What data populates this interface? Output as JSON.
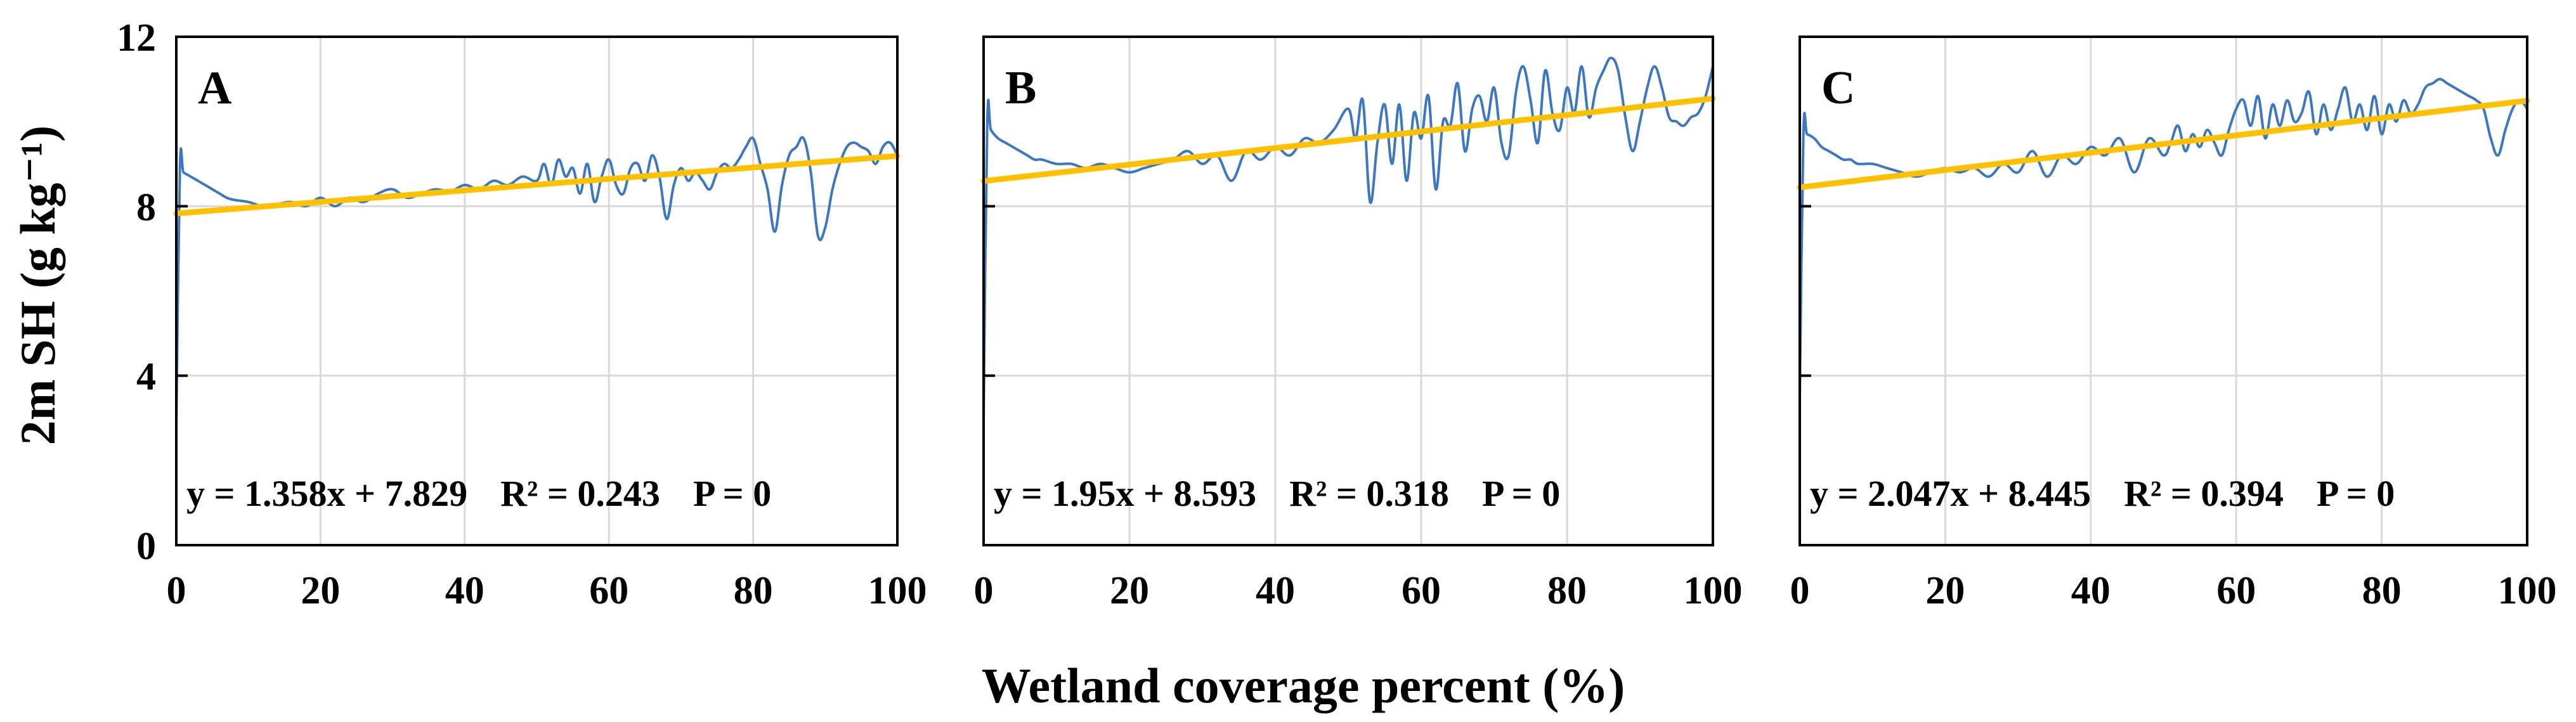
{
  "figure": {
    "ylabel": "2m SH (g kg⁻¹)",
    "xlabel": "Wetland coverage percent (%)"
  },
  "chart_data": [
    {
      "type": "line",
      "panel": "A",
      "equation": "y = 1.358x + 7.829",
      "r2": "R² = 0.243",
      "p": "P = 0",
      "xlim": [
        0,
        100
      ],
      "ylim": [
        0,
        12
      ],
      "xticks": [
        "0",
        "20",
        "40",
        "60",
        "80",
        "100"
      ],
      "yticks": [
        "0",
        "4",
        "8",
        "12"
      ],
      "grid": true,
      "series": [
        {
          "color": "#3b78c0",
          "x": [
            0,
            0.5,
            1,
            2,
            3,
            4,
            5,
            6,
            7,
            8,
            10,
            12,
            14,
            16,
            18,
            20,
            22,
            24,
            26,
            28,
            30,
            32,
            34,
            36,
            38,
            40,
            42,
            44,
            46,
            48,
            50,
            51,
            52,
            53,
            54,
            55,
            56,
            57,
            58,
            59,
            60,
            61,
            62,
            63,
            64,
            65,
            66,
            67,
            68,
            69,
            70,
            71,
            72,
            73,
            74,
            75,
            76,
            77,
            78,
            79,
            80,
            81,
            82,
            83,
            84,
            85,
            86,
            87,
            88,
            89,
            90,
            91,
            92,
            93,
            94,
            95,
            96,
            97,
            98,
            99,
            100
          ],
          "y": [
            2.8,
            8.9,
            8.8,
            8.7,
            8.6,
            8.5,
            8.4,
            8.3,
            8.2,
            8.15,
            8.1,
            8.0,
            8.05,
            8.1,
            8.0,
            8.2,
            8.0,
            8.2,
            8.1,
            8.3,
            8.4,
            8.2,
            8.3,
            8.4,
            8.35,
            8.5,
            8.4,
            8.6,
            8.5,
            8.7,
            8.6,
            9.0,
            8.5,
            9.1,
            8.7,
            8.9,
            8.3,
            9.0,
            8.1,
            8.7,
            9.1,
            8.5,
            8.3,
            8.9,
            9.0,
            8.6,
            9.2,
            8.7,
            7.7,
            8.5,
            8.9,
            8.6,
            8.8,
            8.6,
            8.4,
            8.8,
            9.0,
            8.9,
            9.1,
            9.4,
            9.6,
            9.0,
            8.4,
            7.4,
            8.5,
            9.2,
            9.4,
            9.6,
            8.8,
            7.3,
            7.5,
            8.4,
            9.0,
            9.4,
            9.5,
            9.4,
            9.3,
            9.0,
            9.4,
            9.5,
            9.2
          ]
        },
        {
          "color": "#ffc000",
          "x": [
            0,
            100
          ],
          "y": [
            7.829,
            9.187
          ]
        }
      ]
    },
    {
      "type": "line",
      "panel": "B",
      "equation": "y = 1.95x + 8.593",
      "r2": "R² = 0.318",
      "p": "P = 0",
      "xlim": [
        0,
        100
      ],
      "ylim": [
        0,
        12
      ],
      "xticks": [
        "0",
        "20",
        "40",
        "60",
        "80",
        "100"
      ],
      "yticks": [
        "0",
        "4",
        "8",
        "12"
      ],
      "grid": true,
      "series": [
        {
          "color": "#3b78c0",
          "x": [
            0,
            0.5,
            1,
            2,
            3,
            4,
            5,
            6,
            7,
            8,
            10,
            12,
            14,
            16,
            18,
            20,
            22,
            24,
            26,
            28,
            30,
            32,
            34,
            36,
            38,
            40,
            42,
            44,
            46,
            48,
            50,
            51,
            52,
            53,
            54,
            55,
            56,
            57,
            58,
            59,
            60,
            61,
            62,
            63,
            64,
            65,
            66,
            67,
            68,
            69,
            70,
            71,
            72,
            73,
            74,
            75,
            76,
            77,
            78,
            79,
            80,
            81,
            82,
            83,
            84,
            85,
            86,
            87,
            88,
            89,
            90,
            91,
            92,
            93,
            94,
            95,
            96,
            97,
            98,
            99,
            100
          ],
          "y": [
            3.0,
            10.0,
            9.8,
            9.6,
            9.5,
            9.4,
            9.3,
            9.2,
            9.1,
            9.1,
            9.0,
            9.0,
            8.9,
            9.0,
            8.9,
            8.8,
            8.9,
            9.0,
            9.1,
            9.3,
            9.0,
            9.2,
            8.6,
            9.3,
            9.1,
            9.4,
            9.2,
            9.6,
            9.5,
            9.8,
            10.3,
            9.6,
            10.5,
            8.1,
            9.5,
            10.4,
            9.0,
            10.4,
            8.6,
            10.2,
            9.6,
            10.6,
            8.4,
            10.0,
            9.9,
            10.9,
            9.3,
            10.3,
            10.6,
            10.0,
            10.8,
            9.5,
            9.2,
            10.7,
            11.3,
            10.5,
            9.5,
            11.2,
            10.2,
            9.8,
            10.8,
            10.2,
            11.3,
            10.1,
            10.8,
            11.2,
            11.5,
            11.2,
            10.1,
            9.3,
            10.0,
            10.8,
            11.3,
            10.8,
            10.1,
            10.0,
            9.9,
            10.1,
            10.2,
            10.6,
            11.3
          ]
        },
        {
          "color": "#ffc000",
          "x": [
            0,
            100
          ],
          "y": [
            8.593,
            10.543
          ]
        }
      ]
    },
    {
      "type": "line",
      "panel": "C",
      "equation": "y = 2.047x + 8.445",
      "r2": "R² = 0.394",
      "p": "P = 0",
      "xlim": [
        0,
        100
      ],
      "ylim": [
        0,
        12
      ],
      "xticks": [
        "0",
        "20",
        "40",
        "60",
        "80",
        "100"
      ],
      "yticks": [
        "0",
        "4",
        "8",
        "12"
      ],
      "grid": true,
      "series": [
        {
          "color": "#3b78c0",
          "x": [
            0,
            0.5,
            1,
            2,
            3,
            4,
            5,
            6,
            7,
            8,
            10,
            12,
            14,
            16,
            18,
            20,
            22,
            24,
            26,
            28,
            30,
            32,
            34,
            36,
            38,
            40,
            42,
            44,
            46,
            48,
            50,
            51,
            52,
            53,
            54,
            55,
            56,
            57,
            58,
            59,
            60,
            61,
            62,
            63,
            64,
            65,
            66,
            67,
            68,
            69,
            70,
            71,
            72,
            73,
            74,
            75,
            76,
            77,
            78,
            79,
            80,
            81,
            82,
            83,
            84,
            85,
            86,
            87,
            88,
            89,
            90,
            91,
            92,
            93,
            94,
            95,
            96,
            97,
            98,
            99,
            100
          ],
          "y": [
            3.5,
            9.7,
            9.7,
            9.6,
            9.4,
            9.3,
            9.2,
            9.1,
            9.1,
            9.0,
            9.0,
            8.9,
            8.8,
            8.7,
            8.8,
            8.9,
            8.8,
            8.9,
            8.7,
            9.0,
            8.8,
            9.3,
            8.7,
            9.2,
            9.0,
            9.4,
            9.2,
            9.6,
            8.8,
            9.6,
            9.2,
            9.5,
            9.9,
            9.3,
            9.7,
            9.4,
            9.8,
            9.5,
            9.2,
            9.8,
            10.3,
            10.5,
            9.9,
            10.6,
            9.6,
            10.4,
            9.9,
            10.5,
            10.0,
            10.2,
            10.7,
            9.7,
            10.4,
            9.8,
            10.3,
            10.8,
            10.0,
            10.4,
            9.8,
            10.6,
            9.7,
            10.4,
            10.0,
            10.5,
            10.2,
            10.4,
            10.8,
            10.9,
            11.0,
            10.9,
            10.8,
            10.7,
            10.6,
            10.5,
            10.3,
            9.6,
            9.2,
            9.8,
            10.3,
            10.5,
            10.3
          ]
        },
        {
          "color": "#ffc000",
          "x": [
            0,
            100
          ],
          "y": [
            8.445,
            10.492
          ]
        }
      ]
    }
  ]
}
